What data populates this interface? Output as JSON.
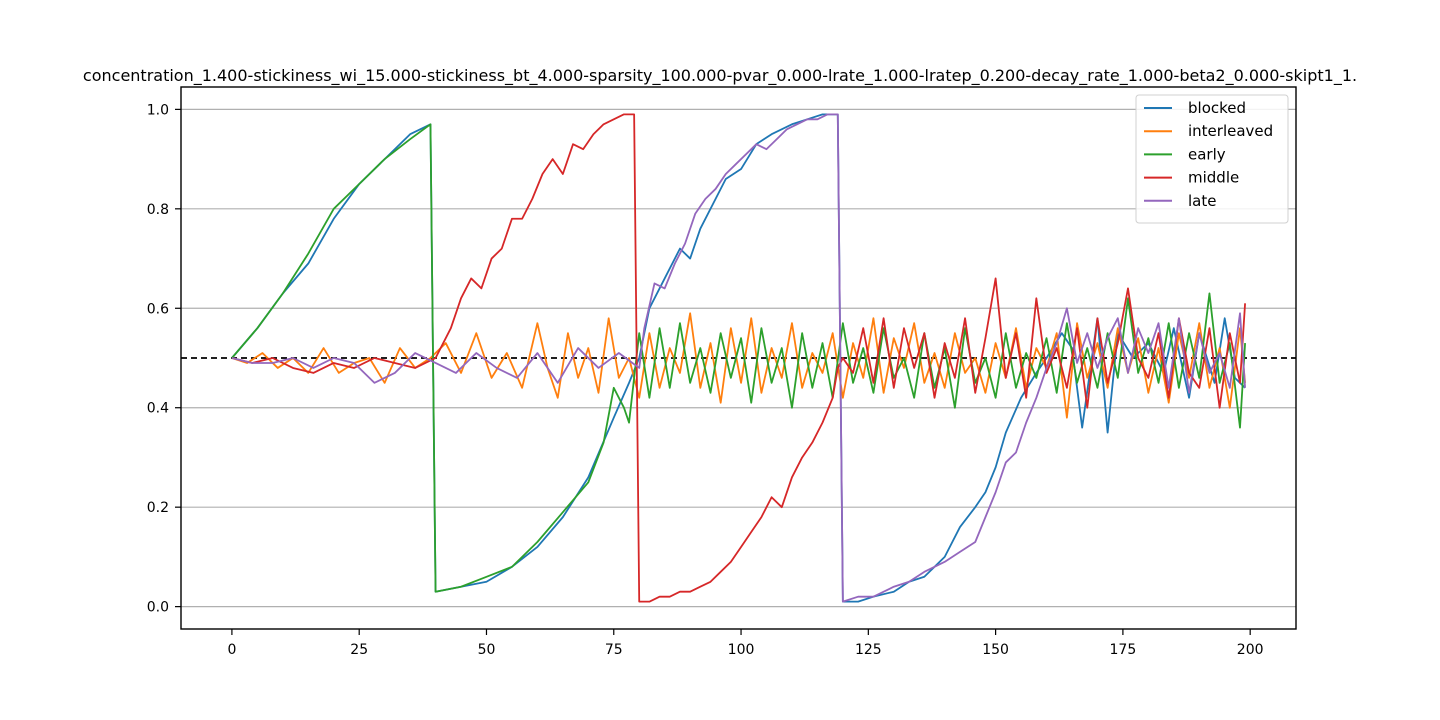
{
  "chart_data": {
    "type": "line",
    "title": "concentration_1.400-stickiness_wi_15.000-stickiness_bt_4.000-sparsity_100.000-pvar_0.000-lrate_1.000-lratep_0.200-decay_rate_1.000-beta2_0.000-skipt1_1.",
    "xlabel": "",
    "ylabel": "",
    "xlim": [
      -10,
      209
    ],
    "ylim": [
      -0.045,
      1.045
    ],
    "xticks": [
      0,
      25,
      50,
      75,
      100,
      125,
      150,
      175,
      200
    ],
    "xtick_labels": [
      "0",
      "25",
      "50",
      "75",
      "100",
      "125",
      "150",
      "175",
      "200"
    ],
    "yticks": [
      0.0,
      0.2,
      0.4,
      0.6,
      0.8,
      1.0
    ],
    "ytick_labels": [
      "0.0",
      "0.2",
      "0.4",
      "0.6",
      "0.8",
      "1.0"
    ],
    "grid": "horizontal",
    "legend_position": "top-right",
    "reference_line": {
      "y": 0.5,
      "style": "dashed",
      "color": "#000000"
    },
    "series": [
      {
        "name": "blocked",
        "color": "#1f77b4",
        "x": [
          0,
          5,
          10,
          15,
          20,
          25,
          30,
          35,
          39,
          40,
          45,
          50,
          55,
          60,
          65,
          70,
          75,
          78,
          80,
          82,
          85,
          88,
          90,
          92,
          95,
          97,
          100,
          103,
          106,
          110,
          113,
          116,
          119,
          120,
          123,
          126,
          130,
          133,
          136,
          140,
          143,
          146,
          148,
          150,
          152,
          155,
          158,
          160,
          163,
          165,
          167,
          170,
          172,
          174,
          177,
          180,
          183,
          185,
          188,
          190,
          193,
          195,
          197,
          199
        ],
        "y": [
          0.5,
          0.56,
          0.63,
          0.69,
          0.78,
          0.85,
          0.9,
          0.95,
          0.97,
          0.03,
          0.04,
          0.05,
          0.08,
          0.12,
          0.18,
          0.26,
          0.38,
          0.45,
          0.5,
          0.6,
          0.66,
          0.72,
          0.7,
          0.76,
          0.82,
          0.86,
          0.88,
          0.93,
          0.95,
          0.97,
          0.98,
          0.99,
          0.99,
          0.01,
          0.01,
          0.02,
          0.03,
          0.05,
          0.06,
          0.1,
          0.16,
          0.2,
          0.23,
          0.28,
          0.35,
          0.42,
          0.47,
          0.5,
          0.55,
          0.52,
          0.36,
          0.58,
          0.35,
          0.55,
          0.5,
          0.53,
          0.47,
          0.56,
          0.42,
          0.55,
          0.45,
          0.58,
          0.46,
          0.44
        ]
      },
      {
        "name": "interleaved",
        "color": "#ff7f0e",
        "x": [
          0,
          3,
          6,
          9,
          12,
          15,
          18,
          21,
          24,
          27,
          30,
          33,
          36,
          39,
          42,
          45,
          48,
          51,
          54,
          57,
          60,
          62,
          64,
          66,
          68,
          70,
          72,
          74,
          76,
          78,
          80,
          82,
          84,
          86,
          88,
          90,
          92,
          94,
          96,
          98,
          100,
          102,
          104,
          106,
          108,
          110,
          112,
          114,
          116,
          118,
          120,
          122,
          124,
          126,
          128,
          130,
          132,
          134,
          136,
          138,
          140,
          142,
          144,
          146,
          148,
          150,
          152,
          154,
          156,
          158,
          160,
          162,
          164,
          166,
          168,
          170,
          172,
          174,
          176,
          178,
          180,
          182,
          184,
          186,
          188,
          190,
          192,
          194,
          196,
          198,
          199
        ],
        "y": [
          0.5,
          0.49,
          0.51,
          0.48,
          0.5,
          0.47,
          0.52,
          0.47,
          0.49,
          0.5,
          0.45,
          0.52,
          0.48,
          0.5,
          0.53,
          0.47,
          0.55,
          0.46,
          0.51,
          0.44,
          0.57,
          0.48,
          0.42,
          0.55,
          0.46,
          0.52,
          0.43,
          0.58,
          0.46,
          0.5,
          0.42,
          0.55,
          0.44,
          0.52,
          0.47,
          0.59,
          0.44,
          0.53,
          0.41,
          0.56,
          0.45,
          0.58,
          0.43,
          0.52,
          0.46,
          0.57,
          0.44,
          0.51,
          0.47,
          0.55,
          0.42,
          0.53,
          0.46,
          0.58,
          0.43,
          0.54,
          0.48,
          0.57,
          0.45,
          0.51,
          0.44,
          0.55,
          0.47,
          0.5,
          0.43,
          0.53,
          0.46,
          0.56,
          0.44,
          0.52,
          0.48,
          0.55,
          0.38,
          0.57,
          0.46,
          0.53,
          0.44,
          0.56,
          0.47,
          0.54,
          0.43,
          0.52,
          0.41,
          0.55,
          0.46,
          0.57,
          0.44,
          0.52,
          0.4,
          0.56,
          0.45
        ]
      },
      {
        "name": "early",
        "color": "#2ca02c",
        "x": [
          0,
          5,
          10,
          15,
          20,
          25,
          30,
          35,
          39,
          40,
          45,
          50,
          55,
          60,
          65,
          70,
          73,
          75,
          77,
          78,
          80,
          82,
          84,
          86,
          88,
          90,
          92,
          94,
          96,
          98,
          100,
          102,
          104,
          106,
          108,
          110,
          112,
          114,
          116,
          118,
          120,
          122,
          124,
          126,
          128,
          130,
          132,
          134,
          136,
          138,
          140,
          142,
          144,
          146,
          148,
          150,
          152,
          154,
          156,
          158,
          160,
          162,
          164,
          166,
          168,
          170,
          172,
          174,
          176,
          178,
          180,
          182,
          184,
          186,
          188,
          190,
          192,
          194,
          196,
          198,
          199
        ],
        "y": [
          0.5,
          0.56,
          0.63,
          0.71,
          0.8,
          0.85,
          0.9,
          0.94,
          0.97,
          0.03,
          0.04,
          0.06,
          0.08,
          0.13,
          0.19,
          0.25,
          0.33,
          0.44,
          0.4,
          0.37,
          0.55,
          0.42,
          0.56,
          0.44,
          0.57,
          0.45,
          0.52,
          0.43,
          0.55,
          0.46,
          0.54,
          0.41,
          0.56,
          0.45,
          0.52,
          0.4,
          0.55,
          0.44,
          0.53,
          0.42,
          0.57,
          0.45,
          0.52,
          0.43,
          0.56,
          0.46,
          0.5,
          0.42,
          0.55,
          0.44,
          0.52,
          0.4,
          0.56,
          0.45,
          0.5,
          0.42,
          0.55,
          0.44,
          0.51,
          0.46,
          0.54,
          0.43,
          0.57,
          0.45,
          0.52,
          0.44,
          0.55,
          0.46,
          0.62,
          0.47,
          0.54,
          0.45,
          0.57,
          0.44,
          0.55,
          0.46,
          0.63,
          0.45,
          0.53,
          0.36,
          0.53
        ]
      },
      {
        "name": "middle",
        "color": "#d62728",
        "x": [
          0,
          4,
          8,
          12,
          16,
          20,
          24,
          28,
          32,
          36,
          40,
          41,
          43,
          45,
          47,
          49,
          51,
          53,
          55,
          57,
          59,
          61,
          63,
          65,
          67,
          69,
          71,
          73,
          75,
          77,
          79,
          80,
          82,
          84,
          86,
          88,
          90,
          92,
          94,
          96,
          98,
          100,
          102,
          104,
          106,
          108,
          110,
          112,
          114,
          116,
          118,
          119,
          120,
          122,
          124,
          126,
          128,
          130,
          132,
          134,
          136,
          138,
          140,
          142,
          144,
          146,
          148,
          150,
          152,
          154,
          156,
          158,
          160,
          162,
          164,
          166,
          168,
          170,
          172,
          174,
          176,
          178,
          180,
          182,
          184,
          186,
          188,
          190,
          192,
          194,
          196,
          198,
          199
        ],
        "y": [
          0.5,
          0.49,
          0.5,
          0.48,
          0.47,
          0.49,
          0.48,
          0.5,
          0.49,
          0.48,
          0.5,
          0.52,
          0.56,
          0.62,
          0.66,
          0.64,
          0.7,
          0.72,
          0.78,
          0.78,
          0.82,
          0.87,
          0.9,
          0.87,
          0.93,
          0.92,
          0.95,
          0.97,
          0.98,
          0.99,
          0.99,
          0.01,
          0.01,
          0.02,
          0.02,
          0.03,
          0.03,
          0.04,
          0.05,
          0.07,
          0.09,
          0.12,
          0.15,
          0.18,
          0.22,
          0.2,
          0.26,
          0.3,
          0.33,
          0.37,
          0.42,
          0.48,
          0.5,
          0.47,
          0.56,
          0.45,
          0.58,
          0.44,
          0.56,
          0.48,
          0.55,
          0.42,
          0.53,
          0.46,
          0.58,
          0.43,
          0.54,
          0.66,
          0.46,
          0.55,
          0.42,
          0.62,
          0.47,
          0.52,
          0.44,
          0.56,
          0.4,
          0.58,
          0.45,
          0.53,
          0.64,
          0.5,
          0.46,
          0.55,
          0.42,
          0.58,
          0.47,
          0.44,
          0.56,
          0.4,
          0.55,
          0.45,
          0.61
        ]
      },
      {
        "name": "late",
        "color": "#9467bd",
        "x": [
          0,
          4,
          8,
          12,
          16,
          20,
          24,
          28,
          32,
          36,
          40,
          44,
          48,
          52,
          56,
          60,
          64,
          68,
          72,
          76,
          80,
          81,
          83,
          85,
          87,
          89,
          91,
          93,
          95,
          97,
          99,
          101,
          103,
          105,
          107,
          109,
          111,
          113,
          115,
          117,
          119,
          120,
          123,
          126,
          130,
          133,
          136,
          140,
          143,
          146,
          148,
          150,
          152,
          154,
          156,
          158,
          160,
          162,
          164,
          166,
          168,
          170,
          172,
          174,
          176,
          178,
          180,
          182,
          184,
          186,
          188,
          190,
          192,
          194,
          196,
          198,
          199
        ],
        "y": [
          0.5,
          0.49,
          0.49,
          0.5,
          0.48,
          0.5,
          0.49,
          0.45,
          0.47,
          0.51,
          0.49,
          0.47,
          0.51,
          0.48,
          0.46,
          0.51,
          0.45,
          0.52,
          0.48,
          0.51,
          0.48,
          0.56,
          0.65,
          0.64,
          0.69,
          0.73,
          0.79,
          0.82,
          0.84,
          0.87,
          0.89,
          0.91,
          0.93,
          0.92,
          0.94,
          0.96,
          0.97,
          0.98,
          0.98,
          0.99,
          0.99,
          0.01,
          0.02,
          0.02,
          0.04,
          0.05,
          0.07,
          0.09,
          0.11,
          0.13,
          0.18,
          0.23,
          0.29,
          0.31,
          0.37,
          0.42,
          0.48,
          0.53,
          0.6,
          0.49,
          0.55,
          0.48,
          0.54,
          0.58,
          0.47,
          0.56,
          0.51,
          0.57,
          0.44,
          0.58,
          0.43,
          0.55,
          0.47,
          0.51,
          0.44,
          0.59,
          0.44
        ]
      }
    ]
  }
}
